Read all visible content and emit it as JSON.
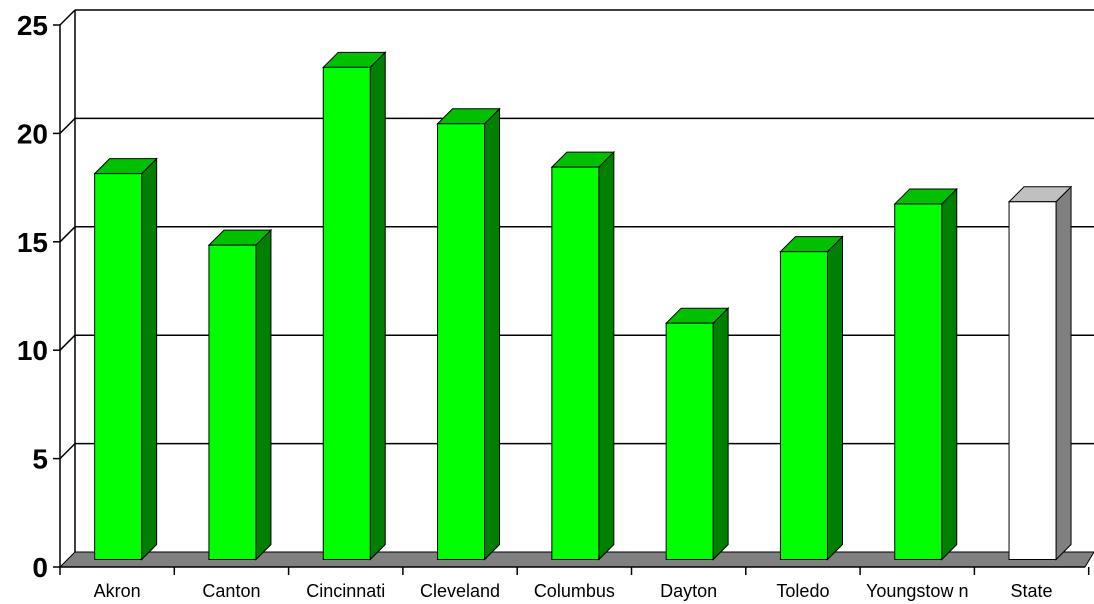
{
  "chart_data": {
    "type": "bar",
    "title": "",
    "xlabel": "",
    "ylabel": "",
    "categories": [
      "Akron",
      "Canton",
      "Cincinnati",
      "Cleveland",
      "Columbus",
      "Dayton",
      "Toledo",
      "Youngstow n",
      "State"
    ],
    "values": [
      17.8,
      14.5,
      22.7,
      20.1,
      18.1,
      10.9,
      14.2,
      16.4,
      16.5
    ],
    "ylim": [
      0,
      25
    ],
    "yticks": [
      "0",
      "5",
      "10",
      "15",
      "20",
      "25"
    ],
    "grid": true,
    "legend": "none",
    "three_d": true,
    "colors": {
      "bar_front": "#00ff00",
      "bar_side": "#008000",
      "bar_top": "#00c000",
      "highlight_front": "#ffffff",
      "highlight_side": "#808080",
      "highlight_top": "#c0c0c0",
      "floor": "#808080",
      "gridline": "#000000"
    },
    "highlight_category": "State"
  }
}
